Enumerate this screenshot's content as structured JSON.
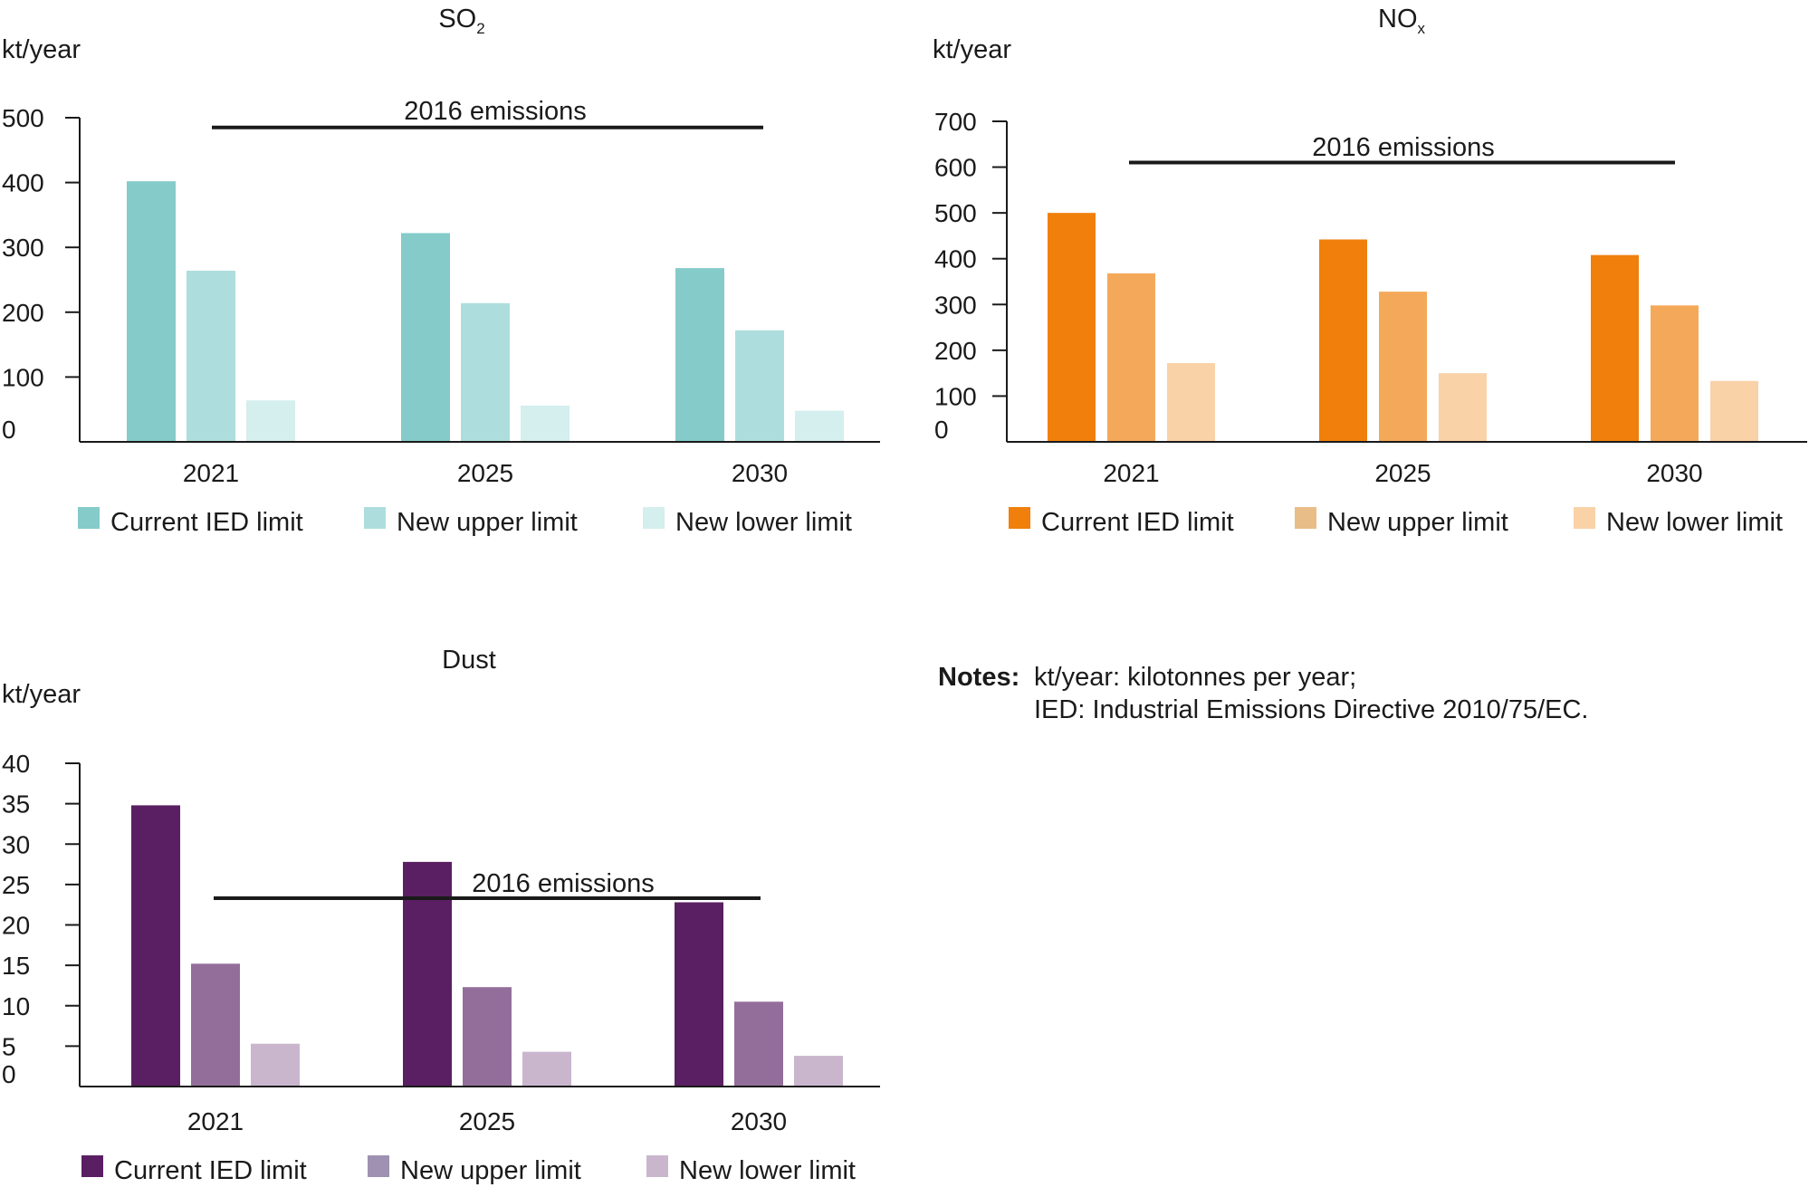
{
  "chart_data": [
    {
      "type": "bar",
      "title": "SO",
      "title_sub": "2",
      "ylabel": "kt/year",
      "ylim": [
        0,
        500
      ],
      "yticks": [
        0,
        100,
        200,
        300,
        400,
        500
      ],
      "categories": [
        "2021",
        "2025",
        "2030"
      ],
      "series": [
        {
          "name": "Current IED limit",
          "color": "#84cbc9",
          "values": [
            402,
            322,
            268
          ]
        },
        {
          "name": "New upper limit",
          "color": "#addedd",
          "values": [
            264,
            214,
            172
          ]
        },
        {
          "name": "New lower limit",
          "color": "#d5eeee",
          "values": [
            64,
            56,
            48
          ]
        }
      ],
      "reference_line": {
        "label": "2016 emissions",
        "value": 485
      },
      "legend_position": "bottom"
    },
    {
      "type": "bar",
      "title": "NO",
      "title_sub": "x",
      "ylabel": "kt/year",
      "ylim": [
        0,
        700
      ],
      "yticks": [
        0,
        100,
        200,
        300,
        400,
        500,
        600,
        700
      ],
      "categories": [
        "2021",
        "2025",
        "2030"
      ],
      "series": [
        {
          "name": "Current IED limit",
          "color": "#f07f0c",
          "values": [
            500,
            442,
            408
          ]
        },
        {
          "name": "New upper limit",
          "color": "#f4a95a",
          "values": [
            368,
            328,
            298
          ]
        },
        {
          "name": "New lower limit",
          "color": "#f9d2a8",
          "values": [
            172,
            150,
            133
          ]
        }
      ],
      "legend_colors": [
        "#f07f0c",
        "#e8bd88",
        "#f9d2a8"
      ],
      "reference_line": {
        "label": "2016 emissions",
        "value": 610
      },
      "legend_position": "bottom"
    },
    {
      "type": "bar",
      "title": "Dust",
      "title_sub": "",
      "ylabel": "kt/year",
      "ylim": [
        0,
        40
      ],
      "yticks": [
        0,
        5,
        10,
        15,
        20,
        25,
        30,
        35,
        40
      ],
      "categories": [
        "2021",
        "2025",
        "2030"
      ],
      "series": [
        {
          "name": "Current IED limit",
          "color": "#5a1f62",
          "values": [
            34.8,
            27.8,
            22.8
          ]
        },
        {
          "name": "New upper limit",
          "color": "#946e9b",
          "values": [
            15.2,
            12.3,
            10.5
          ]
        },
        {
          "name": "New lower limit",
          "color": "#c9b6cd",
          "values": [
            5.3,
            4.3,
            3.8
          ]
        }
      ],
      "legend_colors": [
        "#5a1f62",
        "#9f91b2",
        "#c9b6cd"
      ],
      "reference_line": {
        "label": "2016 emissions",
        "value": 23.3
      },
      "legend_position": "bottom"
    }
  ],
  "notes": {
    "label": "Notes:",
    "lines": [
      "kt/year: kilotonnes per year;",
      "IED: Industrial Emissions Directive 2010/75/EC."
    ]
  }
}
